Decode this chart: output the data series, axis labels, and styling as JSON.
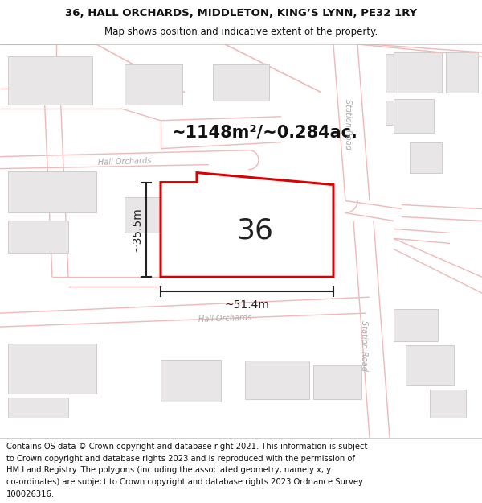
{
  "title_line1": "36, HALL ORCHARDS, MIDDLETON, KING’S LYNN, PE32 1RY",
  "title_line2": "Map shows position and indicative extent of the property.",
  "area_text": "~1148m²/~0.284ac.",
  "number_label": "36",
  "dim_width": "~51.4m",
  "dim_height": "~35.5m",
  "footer_text": "Contains OS data © Crown copyright and database right 2021. This information is subject to Crown copyright and database rights 2023 and is reproduced with the permission of HM Land Registry. The polygons (including the associated geometry, namely x, y co-ordinates) are subject to Crown copyright and database rights 2023 Ordnance Survey 100026316.",
  "bg_color": "#ffffff",
  "map_bg": "#ffffff",
  "road_outline_color": "#f0b8b8",
  "road_fill_color": "#faf0f0",
  "building_color": "#e8e6e6",
  "building_edge": "#d0cccc",
  "plot_outline_color": "#dd0000",
  "plot_fill_color": "#ffffff",
  "road_label_color": "#aaaaaa",
  "dim_line_color": "#222222",
  "title_fontsize": 9.5,
  "subtitle_fontsize": 8.5,
  "footer_fontsize": 7.2,
  "area_fontsize": 15,
  "number_fontsize": 26,
  "dim_fontsize": 10
}
